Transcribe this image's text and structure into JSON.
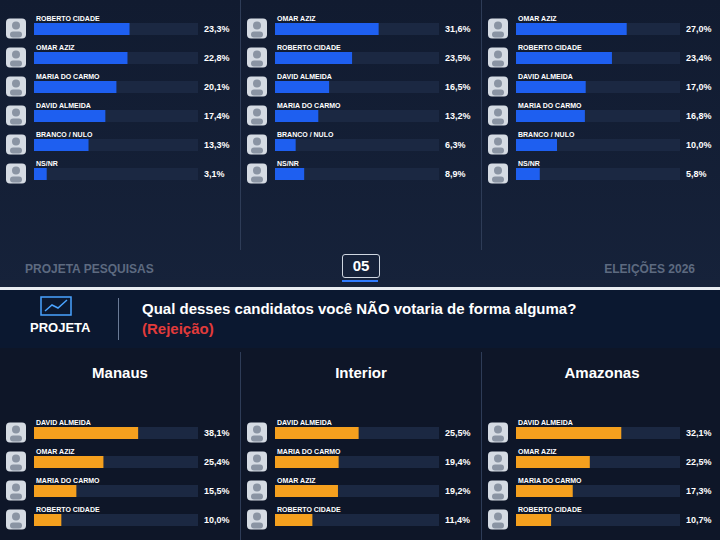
{
  "chart_data": [
    {
      "type": "bar",
      "orientation": "horizontal",
      "categories": [
        "ROBERTO CIDADE",
        "OMAR AZIZ",
        "MARIA DO CARMO",
        "DAVID ALMEIDA",
        "BRANCO / NULO",
        "NS/NR"
      ],
      "values": [
        23.3,
        22.8,
        20.1,
        17.4,
        13.3,
        3.1
      ],
      "value_labels": [
        "23,3%",
        "22,8%",
        "20,1%",
        "17,4%",
        "13,3%",
        "3,1%"
      ],
      "color": "#1e5ff0",
      "xlim": [
        0,
        40
      ],
      "data_labels": true,
      "tick_labels": false,
      "grid": false
    },
    {
      "type": "bar",
      "orientation": "horizontal",
      "categories": [
        "OMAR AZIZ",
        "ROBERTO CIDADE",
        "DAVID ALMEIDA",
        "MARIA DO CARMO",
        "BRANCO / NULO",
        "NS/NR"
      ],
      "values": [
        31.6,
        23.5,
        16.5,
        13.2,
        6.3,
        8.9
      ],
      "value_labels": [
        "31,6%",
        "23,5%",
        "16,5%",
        "13,2%",
        "6,3%",
        "8,9%"
      ],
      "color": "#1e5ff0",
      "xlim": [
        0,
        50
      ],
      "data_labels": true,
      "tick_labels": false,
      "grid": false
    },
    {
      "type": "bar",
      "orientation": "horizontal",
      "categories": [
        "OMAR AZIZ",
        "ROBERTO CIDADE",
        "DAVID ALMEIDA",
        "MARIA DO CARMO",
        "BRANCO / NULO",
        "NS/NR"
      ],
      "values": [
        27.0,
        23.4,
        17.0,
        16.8,
        10.0,
        5.8
      ],
      "value_labels": [
        "27,0%",
        "23,4%",
        "17,0%",
        "16,8%",
        "10,0%",
        "5,8%"
      ],
      "color": "#1e5ff0",
      "xlim": [
        0,
        40
      ],
      "data_labels": true,
      "tick_labels": false,
      "grid": false
    },
    {
      "type": "bar",
      "orientation": "horizontal",
      "title": "Manaus",
      "categories": [
        "DAVID ALMEIDA",
        "OMAR AZIZ",
        "MARIA DO CARMO",
        "ROBERTO CIDADE"
      ],
      "values": [
        38.1,
        25.4,
        15.5,
        10.0
      ],
      "value_labels": [
        "38,1%",
        "25,4%",
        "15,5%",
        "10,0%"
      ],
      "color": "#f5a01e",
      "xlim": [
        0,
        60
      ],
      "data_labels": true,
      "tick_labels": false,
      "grid": false
    },
    {
      "type": "bar",
      "orientation": "horizontal",
      "title": "Interior",
      "categories": [
        "DAVID ALMEIDA",
        "MARIA DO CARMO",
        "OMAR AZIZ",
        "ROBERTO CIDADE"
      ],
      "values": [
        25.5,
        19.4,
        19.2,
        11.4
      ],
      "value_labels": [
        "25,5%",
        "19,4%",
        "19,2%",
        "11,4%"
      ],
      "color": "#f5a01e",
      "xlim": [
        0,
        50
      ],
      "data_labels": true,
      "tick_labels": false,
      "grid": false
    },
    {
      "type": "bar",
      "orientation": "horizontal",
      "title": "Amazonas",
      "categories": [
        "DAVID ALMEIDA",
        "OMAR AZIZ",
        "MARIA DO CARMO",
        "ROBERTO CIDADE"
      ],
      "values": [
        32.1,
        22.5,
        17.3,
        10.7
      ],
      "value_labels": [
        "32,1%",
        "22,5%",
        "17,3%",
        "10,7%"
      ],
      "color": "#f5a01e",
      "xlim": [
        0,
        50
      ],
      "data_labels": true,
      "tick_labels": false,
      "grid": false
    }
  ],
  "texts": {
    "footer": {
      "left": "PROJETA PESQUISAS",
      "page": "05",
      "right": "ELEIÇÕES 2026"
    },
    "header": {
      "brand": "PROJETA",
      "question": "Qual desses candidatos você NÃO votaria de forma alguma?",
      "note": "(Rejeição)"
    }
  }
}
